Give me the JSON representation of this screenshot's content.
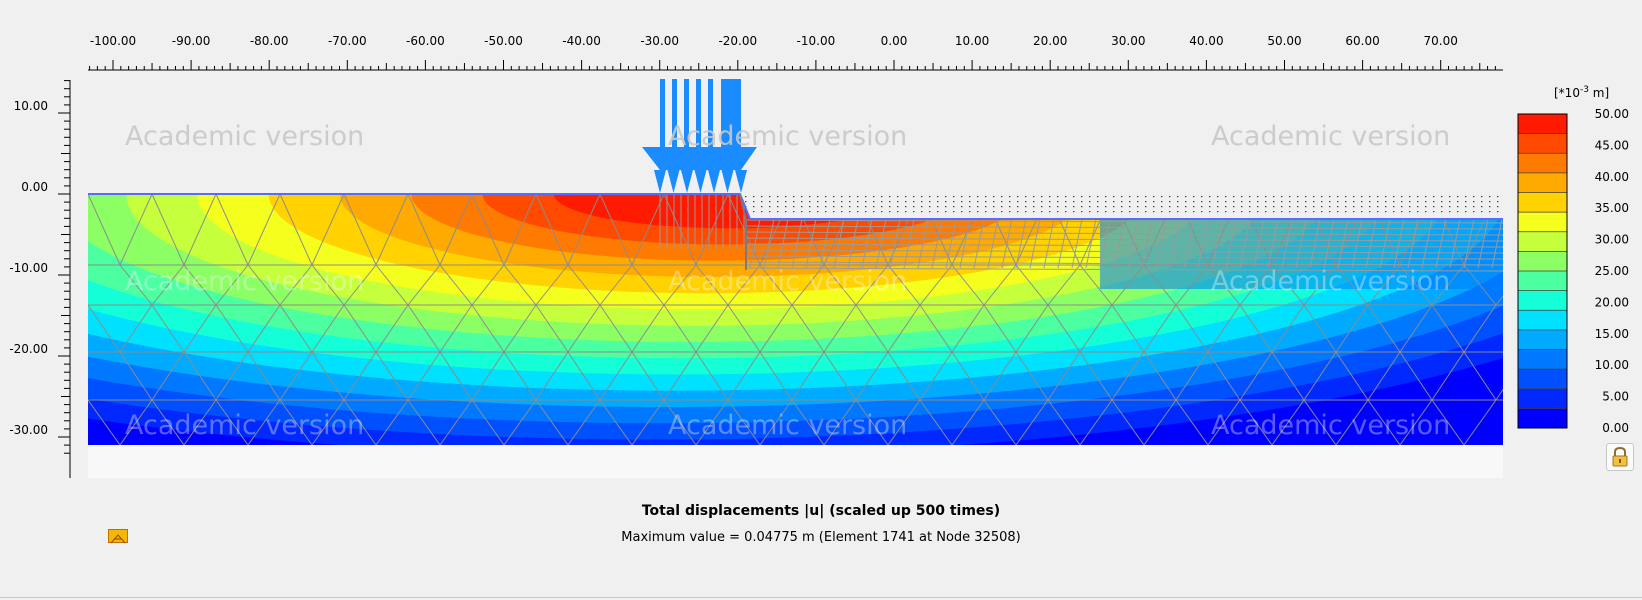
{
  "window": {
    "caption_title": "Total displacements |u| (scaled up 500 times)",
    "caption_max": "Maximum value = 0.04775 m (Element 1741 at Node 32508)"
  },
  "watermark": {
    "text": "Academic version"
  },
  "axes": {
    "x_ticks": [
      "-100.00",
      "-90.00",
      "-80.00",
      "-70.00",
      "-60.00",
      "-50.00",
      "-40.00",
      "-30.00",
      "-20.00",
      "-10.00",
      "0.00",
      "10.00",
      "20.00",
      "30.00",
      "40.00",
      "50.00",
      "60.00",
      "70.00"
    ],
    "y_ticks": [
      "10.00",
      "0.00",
      "-10.00",
      "-20.00",
      "-30.00"
    ]
  },
  "legend": {
    "unit_prefix": "[*10",
    "unit_exp": "-3",
    "unit_suffix": " m]",
    "labels": [
      "50.00",
      "45.00",
      "40.00",
      "35.00",
      "30.00",
      "25.00",
      "20.00",
      "15.00",
      "10.00",
      "5.00",
      "0.00"
    ],
    "colors": [
      "#ff1a00",
      "#ff4a00",
      "#ff7a00",
      "#ffaa00",
      "#ffd200",
      "#f5ff1e",
      "#c6ff3c",
      "#8cff64",
      "#4cffa0",
      "#14ffd8",
      "#00e0ff",
      "#00aaff",
      "#0078ff",
      "#0050ff",
      "#0028ff",
      "#0000ff"
    ]
  },
  "chart_data": {
    "type": "heatmap",
    "title": "Total displacements |u| (scaled up 500 times)",
    "x_range": [
      -100,
      78
    ],
    "y_range": [
      -36,
      14
    ],
    "unit": "[*10^-3 m]",
    "color_scale": {
      "min": 0.0,
      "max": 50.0,
      "step": 5.0
    },
    "max_value_m": 0.04775,
    "max_element": 1741,
    "max_node": 32508,
    "load": {
      "x_from": -30,
      "x_to": -20
    },
    "excavation_level": -3
  },
  "icons": {
    "lock": "lock-icon",
    "legend_swatch": "color-swatch-icon"
  }
}
